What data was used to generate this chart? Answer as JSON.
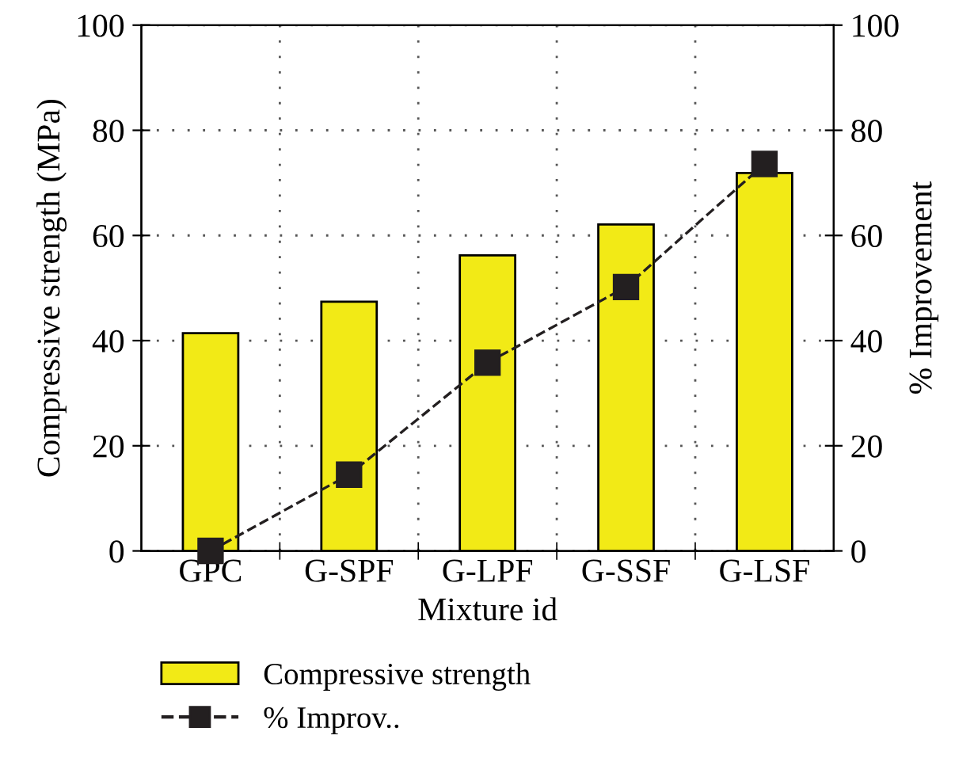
{
  "chart_data": {
    "type": "bar",
    "xlabel": "Mixture id",
    "ylabel": "Compressive strength (MPa)",
    "y2label": "% Improvement",
    "categories": [
      "GPC",
      "G-SPF",
      "G-LPF",
      "G-SSF",
      "G-LSF"
    ],
    "series": [
      {
        "name": "Compressive strength",
        "color": "#f2ea16",
        "values": [
          41.4,
          47.4,
          56.2,
          62.1,
          71.9
        ]
      },
      {
        "name": "% Improv..",
        "type": "line",
        "axis": "y2",
        "color": "#231f20",
        "marker": "square",
        "line_style": "dashed",
        "values": [
          0,
          14.5,
          35.8,
          50.2,
          73.6
        ]
      }
    ],
    "ylim": [
      0,
      100
    ],
    "yticks": [
      0,
      20,
      40,
      60,
      80,
      100
    ],
    "y2lim": [
      0,
      100
    ],
    "y2ticks": [
      0,
      20,
      40,
      60,
      80,
      100
    ],
    "grid": true,
    "legend": "bottom"
  }
}
